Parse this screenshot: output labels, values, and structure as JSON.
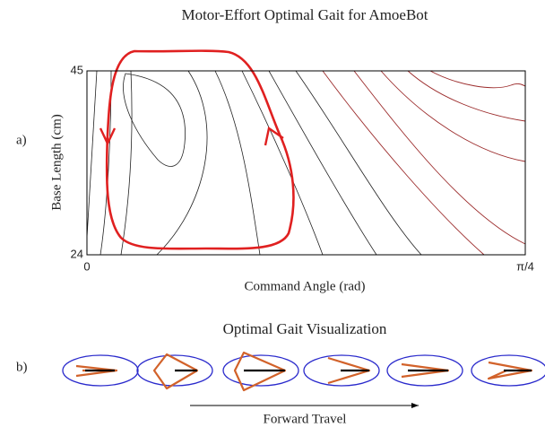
{
  "chart_data": {
    "type": "contour",
    "title": "Motor-Effort Optimal Gait for AmoeBot",
    "xlabel": "Command Angle (rad)",
    "ylabel": "Base Length (cm)",
    "xlim": [
      0,
      0.7854
    ],
    "ylim": [
      24,
      45
    ],
    "xticks": [
      0,
      {
        "value": 0.7854,
        "label": "π/4"
      }
    ],
    "yticks": [
      24,
      45
    ]
  },
  "panel_labels": [
    "a)",
    "b)"
  ],
  "panel_b": {
    "title": "Optimal Gait Visualization",
    "arrow_label": "Forward Travel"
  }
}
